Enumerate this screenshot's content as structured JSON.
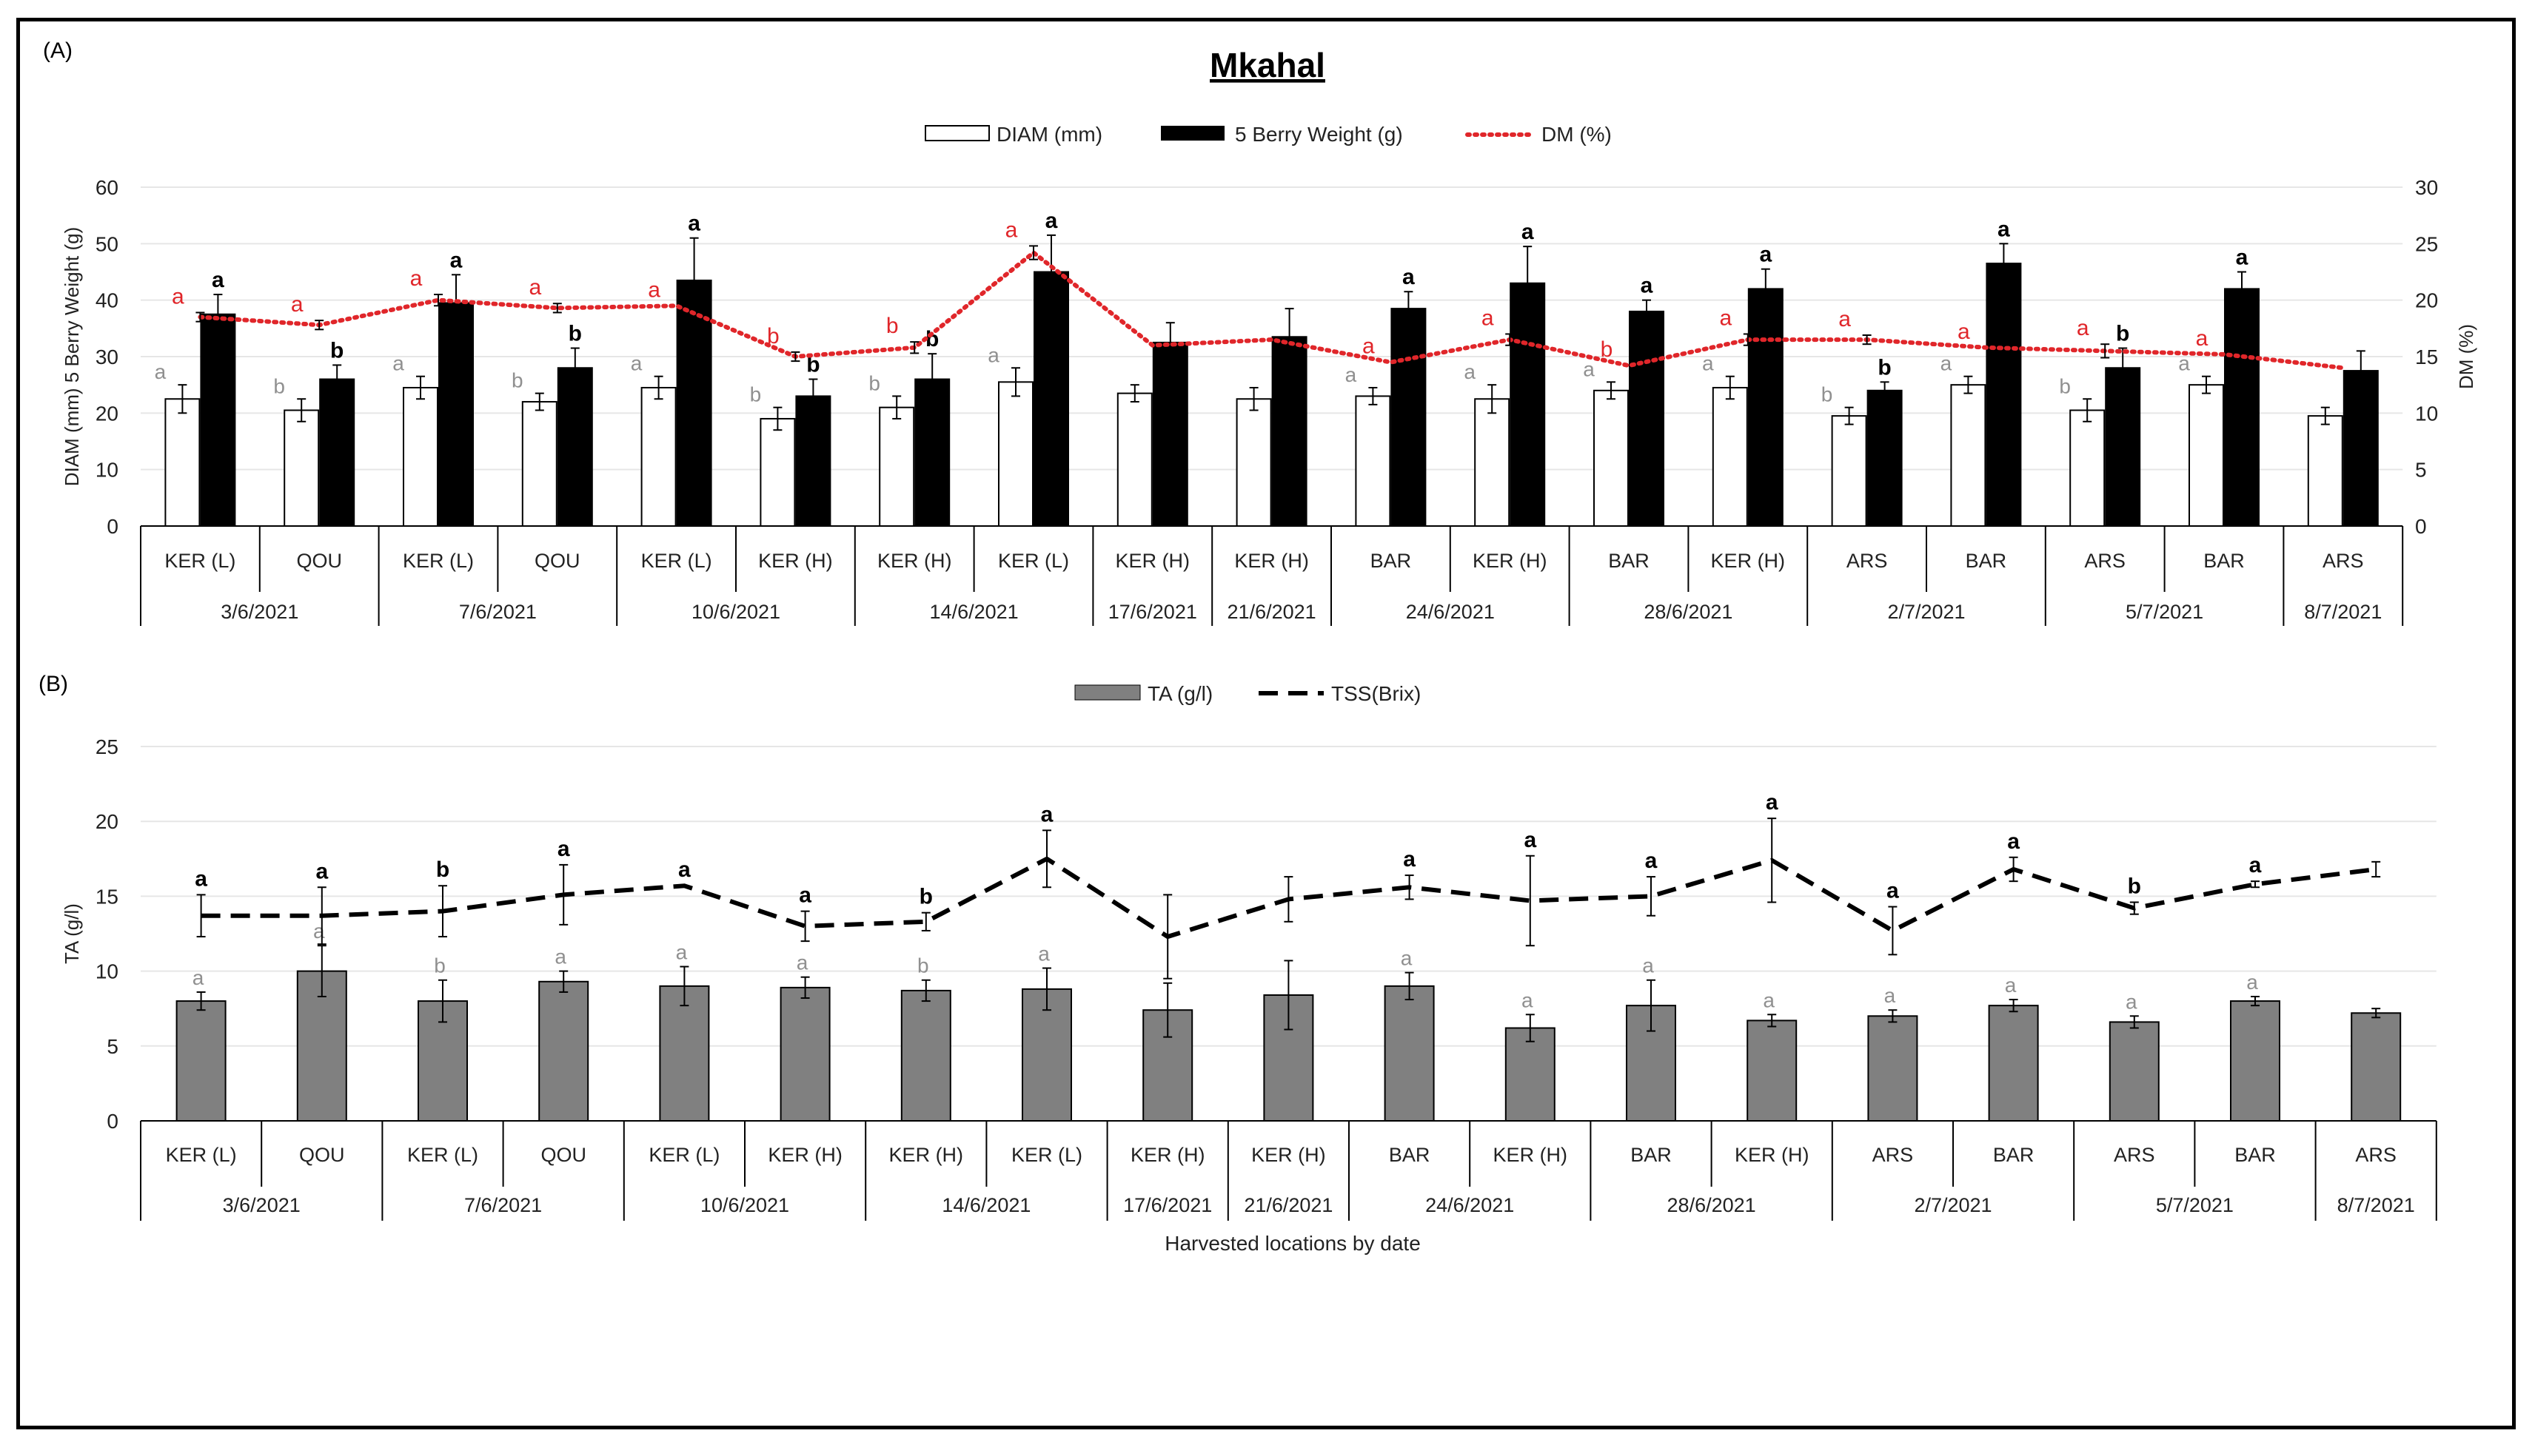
{
  "figure": {
    "title": "Mkahal",
    "panel_a_label": "(A)",
    "panel_b_label": "(B)",
    "x_axis_title": "Harvested locations by date"
  },
  "chart_data": [
    {
      "type": "bar",
      "panel": "A",
      "title": "Mkahal",
      "ylabel": "DIAM (mm) 5 Berry Weight (g)",
      "y2label": "DM (%)",
      "ylim": [
        0,
        60
      ],
      "y2lim": [
        0,
        30
      ],
      "yticks": [
        "0",
        "10",
        "20",
        "30",
        "40",
        "50",
        "60"
      ],
      "y2ticks": [
        "0",
        "5",
        "10",
        "15",
        "20",
        "25",
        "30"
      ],
      "legend": [
        "DIAM (mm)",
        "5 Berry Weight (g)",
        "DM (%)"
      ],
      "categories": [
        "KER (L)",
        "QOU",
        "KER (L)",
        "QOU",
        "KER (L)",
        "KER (H)",
        "KER (H)",
        "KER (L)",
        "KER (H)",
        "KER (H)",
        "BAR",
        "KER (H)",
        "BAR",
        "KER (H)",
        "ARS",
        "BAR",
        "ARS",
        "BAR",
        "ARS"
      ],
      "date_groups": [
        {
          "label": "3/6/2021",
          "count": 2
        },
        {
          "label": "7/6/2021",
          "count": 2
        },
        {
          "label": "10/6/2021",
          "count": 2
        },
        {
          "label": "14/6/2021",
          "count": 2
        },
        {
          "label": "17/6/2021",
          "count": 1
        },
        {
          "label": "21/6/2021",
          "count": 1
        },
        {
          "label": "24/6/2021",
          "count": 2
        },
        {
          "label": "28/6/2021",
          "count": 2
        },
        {
          "label": "2/7/2021",
          "count": 2
        },
        {
          "label": "5/7/2021",
          "count": 2
        },
        {
          "label": "8/7/2021",
          "count": 1
        }
      ],
      "series": [
        {
          "name": "DIAM (mm)",
          "axis": "left",
          "color": "#ffffff",
          "values": [
            22.5,
            20.5,
            24.5,
            22,
            24.5,
            19,
            21,
            25.5,
            23.5,
            22.5,
            23,
            22.5,
            24,
            24.5,
            19.5,
            25,
            20.5,
            25,
            19.5
          ],
          "errors": [
            2.5,
            2,
            2,
            1.5,
            2,
            2,
            2,
            2.5,
            1.5,
            2,
            1.5,
            2.5,
            1.5,
            2,
            1.5,
            1.5,
            2,
            1.5,
            1.5
          ],
          "letters": [
            "a",
            "b",
            "a",
            "b",
            "a",
            "b",
            "b",
            "a",
            "",
            "",
            "a",
            "a",
            "a",
            "a",
            "b",
            "a",
            "b",
            "a",
            ""
          ]
        },
        {
          "name": "5 Berry Weight (g)",
          "axis": "left",
          "color": "#000000",
          "values": [
            37.5,
            26,
            39.5,
            28,
            43.5,
            23,
            26,
            45,
            32.5,
            33.5,
            38.5,
            43,
            38,
            42,
            24,
            46.5,
            28,
            42,
            27.5
          ],
          "errors": [
            3.5,
            2.5,
            5,
            3.5,
            7.5,
            3,
            4.5,
            6.5,
            3.5,
            5,
            3,
            6.5,
            2,
            3.5,
            1.5,
            3.5,
            3.5,
            3,
            3.5
          ],
          "letters": [
            "a",
            "b",
            "a",
            "b",
            "a",
            "b",
            "b",
            "a",
            "",
            "",
            "a",
            "a",
            "a",
            "a",
            "b",
            "a",
            "b",
            "a",
            ""
          ]
        },
        {
          "name": "DM (%)",
          "axis": "right",
          "color": "#e0262a",
          "values": [
            18.5,
            17.8,
            20,
            19.3,
            19.5,
            15,
            15.8,
            24.2,
            16,
            16.5,
            14.5,
            16.5,
            14.2,
            16.5,
            16.5,
            15.8,
            15.5,
            15.2,
            14
          ],
          "errors": [
            0.4,
            0.4,
            0.5,
            0.4,
            0,
            0.4,
            0.5,
            0.6,
            0,
            0,
            0,
            0.5,
            0,
            0.5,
            0.4,
            0,
            0.6,
            0,
            0
          ],
          "letters": [
            "a",
            "a",
            "a",
            "a",
            "a",
            "b",
            "b",
            "a",
            "",
            "",
            "a",
            "a",
            "b",
            "a",
            "a",
            "a",
            "a",
            "a",
            ""
          ]
        }
      ]
    },
    {
      "type": "bar",
      "panel": "B",
      "ylabel": "TA (g/l)",
      "ylim": [
        0,
        25
      ],
      "yticks": [
        "0",
        "5",
        "10",
        "15",
        "20",
        "25"
      ],
      "xlabel": "Harvested locations by date",
      "legend": [
        "TA (g/l)",
        "TSS(Brix)"
      ],
      "categories": [
        "KER (L)",
        "QOU",
        "KER (L)",
        "QOU",
        "KER (L)",
        "KER (H)",
        "KER (H)",
        "KER (L)",
        "KER (H)",
        "KER (H)",
        "BAR",
        "KER (H)",
        "BAR",
        "KER (H)",
        "ARS",
        "BAR",
        "ARS",
        "BAR",
        "ARS"
      ],
      "date_groups": [
        {
          "label": "3/6/2021",
          "count": 2
        },
        {
          "label": "7/6/2021",
          "count": 2
        },
        {
          "label": "10/6/2021",
          "count": 2
        },
        {
          "label": "14/6/2021",
          "count": 2
        },
        {
          "label": "17/6/2021",
          "count": 1
        },
        {
          "label": "21/6/2021",
          "count": 1
        },
        {
          "label": "24/6/2021",
          "count": 2
        },
        {
          "label": "28/6/2021",
          "count": 2
        },
        {
          "label": "2/7/2021",
          "count": 2
        },
        {
          "label": "5/7/2021",
          "count": 2
        },
        {
          "label": "8/7/2021",
          "count": 1
        }
      ],
      "series": [
        {
          "name": "TA (g/l)",
          "color": "#808080",
          "values": [
            8,
            10,
            8,
            9.3,
            9,
            8.9,
            8.7,
            8.8,
            7.4,
            8.4,
            9,
            6.2,
            7.7,
            6.7,
            7,
            7.7,
            6.6,
            8,
            7.2
          ],
          "errors": [
            0.6,
            1.7,
            1.4,
            0.7,
            1.3,
            0.7,
            0.7,
            1.4,
            1.8,
            2.3,
            0.9,
            0.9,
            1.7,
            0.4,
            0.4,
            0.4,
            0.4,
            0.3,
            0.3
          ],
          "letters": [
            "a",
            "a",
            "b",
            "a",
            "a",
            "a",
            "b",
            "a",
            "",
            "",
            "a",
            "a",
            "a",
            "a",
            "a",
            "a",
            "a",
            "a",
            ""
          ]
        },
        {
          "name": "TSS(Brix)",
          "color": "#000000",
          "values": [
            13.7,
            13.7,
            14,
            15.1,
            15.7,
            13,
            13.3,
            17.5,
            12.3,
            14.8,
            15.6,
            14.7,
            15,
            17.4,
            12.7,
            16.8,
            14.2,
            15.8,
            16.8
          ],
          "errors": [
            1.4,
            1.9,
            1.7,
            2,
            0,
            1,
            0.6,
            1.9,
            2.8,
            1.5,
            0.8,
            3,
            1.3,
            2.8,
            1.6,
            0.8,
            0.4,
            0.2,
            0.5
          ],
          "letters": [
            "a",
            "a",
            "b",
            "a",
            "a",
            "a",
            "b",
            "a",
            "",
            "",
            "a",
            "a",
            "a",
            "a",
            "a",
            "a",
            "b",
            "a",
            ""
          ]
        }
      ]
    }
  ]
}
